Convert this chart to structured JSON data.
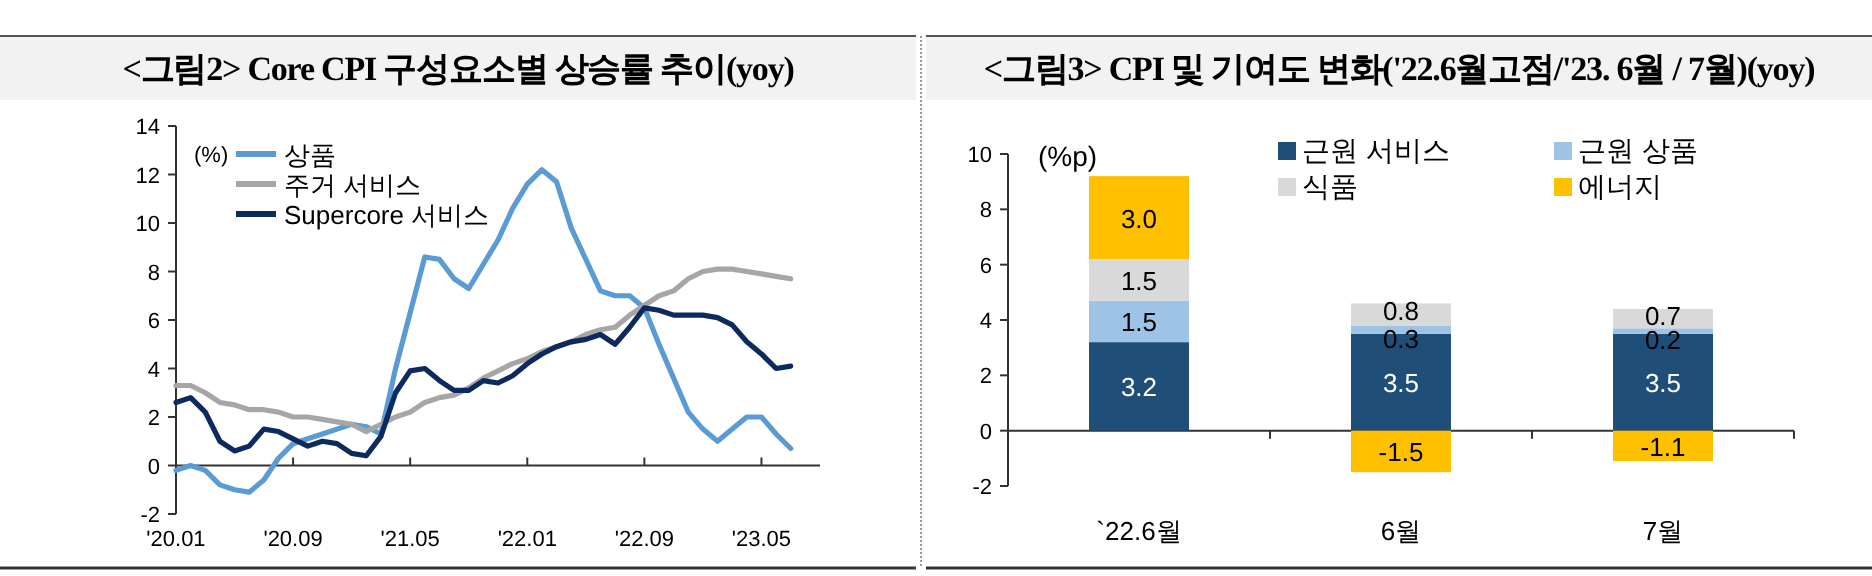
{
  "chart_data": [
    {
      "type": "line",
      "title": "<그림2> Core CPI 구성요소별 상승률 추이(yoy)",
      "ylabel": "(%)",
      "x": [
        "2020-01",
        "2020-02",
        "2020-03",
        "2020-04",
        "2020-05",
        "2020-06",
        "2020-07",
        "2020-08",
        "2020-09",
        "2020-10",
        "2020-11",
        "2020-12",
        "2021-01",
        "2021-02",
        "2021-03",
        "2021-04",
        "2021-05",
        "2021-06",
        "2021-07",
        "2021-08",
        "2021-09",
        "2021-10",
        "2021-11",
        "2021-12",
        "2022-01",
        "2022-02",
        "2022-03",
        "2022-04",
        "2022-05",
        "2022-06",
        "2022-07",
        "2022-08",
        "2022-09",
        "2022-10",
        "2022-11",
        "2022-12",
        "2023-01",
        "2023-02",
        "2023-03",
        "2023-04",
        "2023-05",
        "2023-06",
        "2023-07"
      ],
      "series": [
        {
          "name": "상품",
          "color": "#5b9bd5",
          "values": [
            -0.2,
            0.0,
            -0.2,
            -0.8,
            -1.0,
            -1.1,
            -0.6,
            0.3,
            0.9,
            1.1,
            1.3,
            1.5,
            1.7,
            1.6,
            1.3,
            4.0,
            6.3,
            8.6,
            8.5,
            7.7,
            7.3,
            8.3,
            9.3,
            10.6,
            11.6,
            12.2,
            11.7,
            9.8,
            8.5,
            7.2,
            7.0,
            7.0,
            6.5,
            5.0,
            3.6,
            2.2,
            1.5,
            1.0,
            1.5,
            2.0,
            2.0,
            1.3,
            0.7
          ]
        },
        {
          "name": "주거 서비스",
          "color": "#a6a6a6",
          "values": [
            3.3,
            3.3,
            3.0,
            2.6,
            2.5,
            2.3,
            2.3,
            2.2,
            2.0,
            2.0,
            1.9,
            1.8,
            1.7,
            1.4,
            1.7,
            2.0,
            2.2,
            2.6,
            2.8,
            2.9,
            3.2,
            3.6,
            3.9,
            4.2,
            4.4,
            4.7,
            4.9,
            5.1,
            5.4,
            5.6,
            5.7,
            6.2,
            6.6,
            7.0,
            7.2,
            7.7,
            8.0,
            8.1,
            8.1,
            8.0,
            7.9,
            7.8,
            7.7
          ]
        },
        {
          "name": "Supercore 서비스",
          "color": "#0d2a5e",
          "values": [
            2.6,
            2.8,
            2.2,
            1.0,
            0.6,
            0.8,
            1.5,
            1.4,
            1.1,
            0.8,
            1.0,
            0.9,
            0.5,
            0.4,
            1.2,
            3.0,
            3.9,
            4.0,
            3.5,
            3.1,
            3.1,
            3.5,
            3.4,
            3.7,
            4.2,
            4.6,
            4.9,
            5.1,
            5.2,
            5.4,
            5.0,
            5.7,
            6.5,
            6.4,
            6.2,
            6.2,
            6.2,
            6.1,
            5.8,
            5.1,
            4.6,
            4.0,
            4.1
          ]
        }
      ],
      "xlim": [
        "2020-01",
        "2023-09"
      ],
      "xticks": [
        {
          "value": "2020-01",
          "label": "'20.01"
        },
        {
          "value": "2020-09",
          "label": "'20.09"
        },
        {
          "value": "2021-05",
          "label": "'21.05"
        },
        {
          "value": "2022-01",
          "label": "'22.01"
        },
        {
          "value": "2022-09",
          "label": "'22.09"
        },
        {
          "value": "2023-05",
          "label": "'23.05"
        }
      ],
      "ylim": [
        -2,
        14
      ],
      "yticks": [
        -2,
        0,
        2,
        4,
        6,
        8,
        10,
        12,
        14
      ],
      "legend": "top left",
      "marker": "none",
      "line_style": "solid"
    },
    {
      "type": "bar",
      "stacked": true,
      "title": "<그림3> CPI 및 기여도 변화('22.6월고점/'23. 6월 / 7월)(yoy)",
      "ylabel": "(%p)",
      "categories": [
        "`22.6월",
        "6월",
        "7월"
      ],
      "series": [
        {
          "name": "근원 서비스",
          "color": "#1f4e79",
          "values": [
            3.2,
            3.5,
            3.5
          ],
          "value_labels": [
            "3.2",
            "3.5",
            "3.5"
          ]
        },
        {
          "name": "근원 상품",
          "color": "#9dc3e6",
          "values": [
            1.5,
            0.3,
            0.2
          ],
          "value_labels": [
            "1.5",
            "0.3",
            "0.2"
          ]
        },
        {
          "name": "식품",
          "color": "#d9d9d9",
          "values": [
            1.5,
            0.8,
            0.7
          ],
          "value_labels": [
            "1.5",
            "0.8",
            "0.7"
          ]
        },
        {
          "name": "에너지",
          "color": "#ffc000",
          "values": [
            3.0,
            -1.5,
            -1.1
          ],
          "value_labels": [
            "3.0",
            "-1.5",
            "-1.1"
          ]
        }
      ],
      "ylim": [
        -2,
        10
      ],
      "yticks": [
        -2,
        0,
        2,
        4,
        6,
        8,
        10
      ],
      "legend": "top right"
    }
  ]
}
